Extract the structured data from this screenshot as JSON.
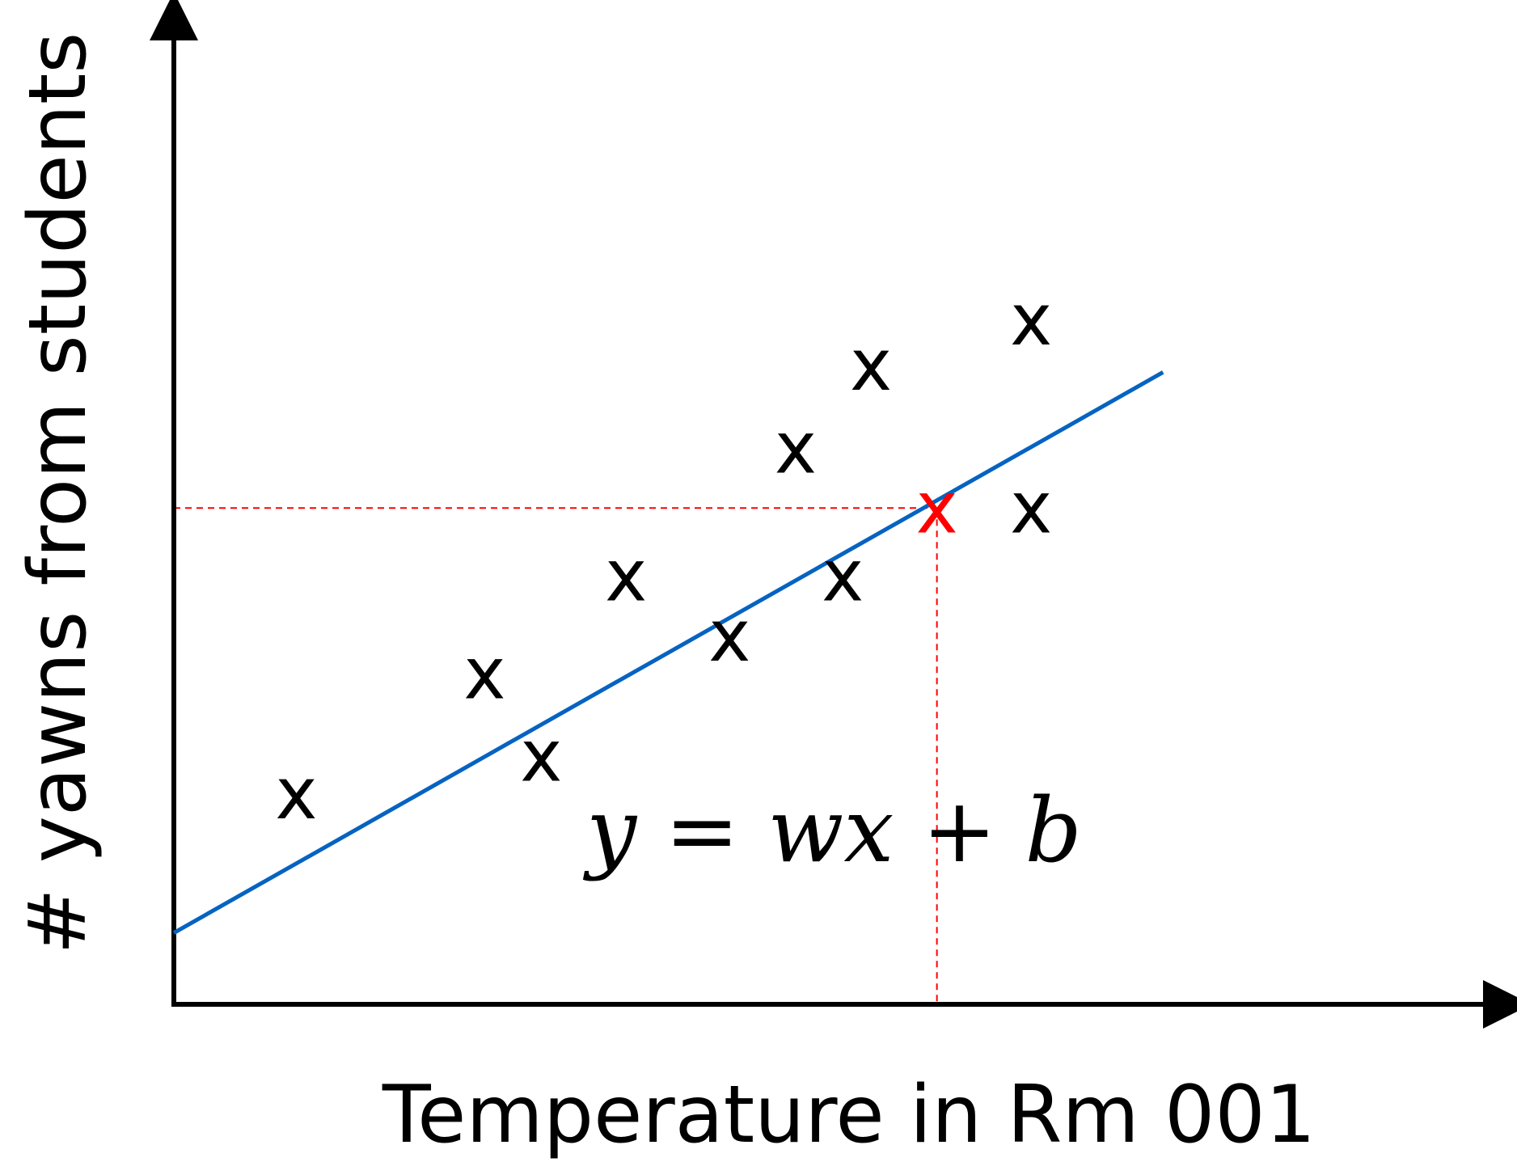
{
  "chart_data": {
    "type": "scatter",
    "title": "",
    "xlabel": "Temperature in Rm 001",
    "ylabel": "# yawns from students",
    "xlim": [
      0,
      12
    ],
    "ylim": [
      0,
      10
    ],
    "grid": false,
    "marker_text": "x",
    "marker_color": "#000000",
    "points": [
      {
        "x": 1.3,
        "y": 2.8
      },
      {
        "x": 3.3,
        "y": 4.4
      },
      {
        "x": 3.9,
        "y": 3.3
      },
      {
        "x": 4.8,
        "y": 5.7
      },
      {
        "x": 5.9,
        "y": 4.9
      },
      {
        "x": 6.6,
        "y": 7.4
      },
      {
        "x": 7.1,
        "y": 5.7
      },
      {
        "x": 7.4,
        "y": 8.5
      },
      {
        "x": 9.1,
        "y": 9.1
      },
      {
        "x": 9.1,
        "y": 6.6
      }
    ],
    "highlight_point": {
      "x": 8.1,
      "y": 6.6,
      "color": "#ff0000"
    },
    "fit_line": {
      "slope": 0.71,
      "intercept": 0.95,
      "x_range": [
        0,
        10.5
      ],
      "color": "#0563c1",
      "label": "y = wx + b"
    },
    "guide_color": "#ff0000"
  }
}
